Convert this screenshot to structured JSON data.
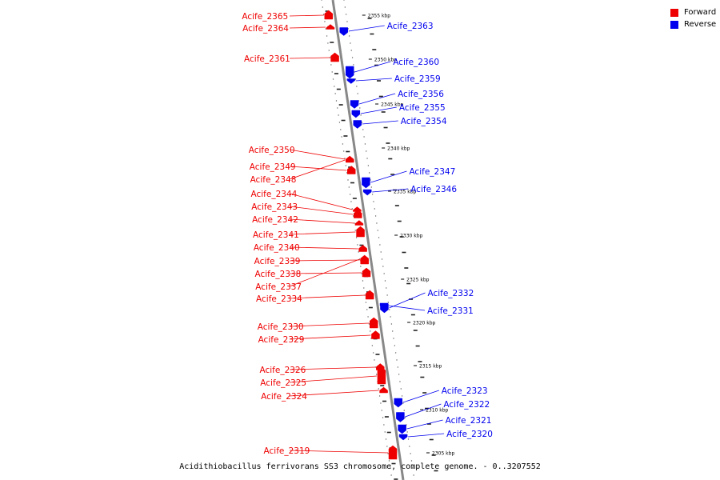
{
  "colors": {
    "forward": "#ee0000",
    "reverse": "#0000ee",
    "axis": "#888888"
  },
  "legend": [
    {
      "label": "Forward",
      "strand": "forward"
    },
    {
      "label": "Reverse",
      "strand": "reverse"
    }
  ],
  "caption": "Acidithiobacillus ferrivorans SS3 chromosome, complete genome. - 0..3207552",
  "scale_marks": [
    "2355 kbp",
    "2350 kbp",
    "2345 kbp",
    "2340 kbp",
    "2335 kbp",
    "2330 kbp",
    "2325 kbp",
    "2320 kbp",
    "2315 kbp",
    "2310 kbp",
    "2305 kbp"
  ],
  "genes": [
    {
      "name": "Acife_2365",
      "strand": "forward"
    },
    {
      "name": "Acife_2364",
      "strand": "forward"
    },
    {
      "name": "Acife_2363",
      "strand": "reverse"
    },
    {
      "name": "Acife_2361",
      "strand": "forward"
    },
    {
      "name": "Acife_2360",
      "strand": "reverse"
    },
    {
      "name": "Acife_2359",
      "strand": "reverse"
    },
    {
      "name": "Acife_2356",
      "strand": "reverse"
    },
    {
      "name": "Acife_2355",
      "strand": "reverse"
    },
    {
      "name": "Acife_2354",
      "strand": "reverse"
    },
    {
      "name": "Acife_2350",
      "strand": "forward"
    },
    {
      "name": "Acife_2349",
      "strand": "forward"
    },
    {
      "name": "Acife_2348",
      "strand": "forward"
    },
    {
      "name": "Acife_2347",
      "strand": "reverse"
    },
    {
      "name": "Acife_2346",
      "strand": "reverse"
    },
    {
      "name": "Acife_2344",
      "strand": "forward"
    },
    {
      "name": "Acife_2343",
      "strand": "forward"
    },
    {
      "name": "Acife_2342",
      "strand": "forward"
    },
    {
      "name": "Acife_2341",
      "strand": "forward"
    },
    {
      "name": "Acife_2340",
      "strand": "forward"
    },
    {
      "name": "Acife_2339",
      "strand": "forward"
    },
    {
      "name": "Acife_2338",
      "strand": "forward"
    },
    {
      "name": "Acife_2337",
      "strand": "forward"
    },
    {
      "name": "Acife_2334",
      "strand": "forward"
    },
    {
      "name": "Acife_2332",
      "strand": "reverse"
    },
    {
      "name": "Acife_2331",
      "strand": "reverse"
    },
    {
      "name": "Acife_2330",
      "strand": "forward"
    },
    {
      "name": "Acife_2329",
      "strand": "forward"
    },
    {
      "name": "Acife_2326",
      "strand": "forward"
    },
    {
      "name": "Acife_2325",
      "strand": "forward"
    },
    {
      "name": "Acife_2324",
      "strand": "forward"
    },
    {
      "name": "Acife_2323",
      "strand": "reverse"
    },
    {
      "name": "Acife_2322",
      "strand": "reverse"
    },
    {
      "name": "Acife_2321",
      "strand": "reverse"
    },
    {
      "name": "Acife_2320",
      "strand": "reverse"
    },
    {
      "name": "Acife_2319",
      "strand": "forward"
    }
  ]
}
